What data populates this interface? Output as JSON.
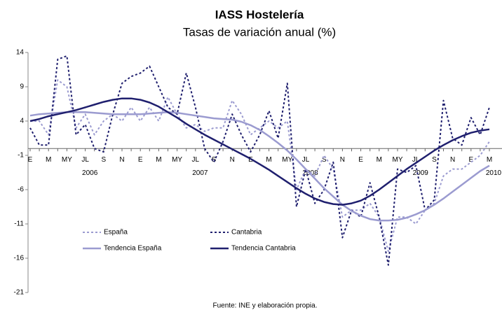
{
  "chart_data": {
    "type": "line",
    "title": "IASS Hostelería",
    "subtitle": "Tasas de variación anual (%)",
    "source": "Fuente: INE y elaboración propia.",
    "categories": [
      "E",
      null,
      "M",
      null,
      "MY",
      null,
      "JL",
      null,
      "S",
      null,
      "N",
      null,
      "E",
      null,
      "M",
      null,
      "MY",
      null,
      "JL",
      null,
      "S",
      null,
      "N",
      null,
      "E",
      null,
      "M",
      null,
      "MY",
      null,
      "JL",
      null,
      "S",
      null,
      "N",
      null,
      "E",
      null,
      "M",
      null,
      "MY",
      null,
      "JL",
      null,
      "S",
      null,
      "N",
      null,
      "E",
      null,
      "M"
    ],
    "year_labels": [
      "2006",
      "2007",
      "2008",
      "2009",
      "2010"
    ],
    "ylim": [
      -21,
      14
    ],
    "yticks": [
      -21,
      -16,
      -11,
      -6,
      -1,
      4,
      9,
      14
    ],
    "legend": "lower-left",
    "series": [
      {
        "name": "España",
        "color": "#9b9bd0",
        "dashed": true,
        "values": [
          4,
          4,
          2,
          10,
          9,
          3,
          5,
          2,
          4,
          5,
          4,
          6,
          4,
          6,
          4,
          7.5,
          5,
          3,
          3.5,
          2.5,
          3,
          3,
          7,
          5,
          2,
          3,
          4,
          3,
          4,
          -6,
          -3,
          -4,
          -1,
          -3,
          -10,
          -9,
          -9,
          -8,
          -10,
          -15,
          -10,
          -10,
          -11,
          -9,
          -8,
          -4,
          -3,
          -3,
          -2,
          -1,
          1
        ]
      },
      {
        "name": "Cantabria",
        "color": "#1f1f6e",
        "dashed": true,
        "values": [
          3,
          0.5,
          0.5,
          13,
          13.5,
          2,
          3.5,
          0,
          -0.5,
          5,
          9.5,
          10.5,
          11,
          12,
          9,
          6,
          5,
          11,
          6,
          0,
          -2,
          1,
          5,
          2,
          -0.5,
          2,
          5.5,
          1.5,
          9.5,
          -8.5,
          -3,
          -8,
          -6,
          -2,
          -13,
          -9,
          -10,
          -5,
          -10,
          -17,
          -3,
          -3.5,
          -2.5,
          -9,
          -7.5,
          7,
          1.5,
          0.5,
          4.5,
          2,
          6
        ]
      },
      {
        "name": "Tendencia España",
        "color": "#9b9bd0",
        "dashed": false,
        "values": [
          4.8,
          5,
          5.1,
          5.2,
          5.3,
          5.3,
          5.3,
          5.2,
          5.1,
          5,
          5,
          5,
          5,
          5.1,
          5.2,
          5.3,
          5.2,
          5,
          4.8,
          4.6,
          4.4,
          4.3,
          4.2,
          3.9,
          3.4,
          2.7,
          1.8,
          0.8,
          -0.3,
          -1.6,
          -3,
          -4.4,
          -5.8,
          -7,
          -8.2,
          -9.1,
          -9.8,
          -10.3,
          -10.5,
          -10.5,
          -10.4,
          -10.1,
          -9.6,
          -9,
          -8.2,
          -7.3,
          -6.3,
          -5.3,
          -4.3,
          -3.3,
          -2.5
        ]
      },
      {
        "name": "Tendencia Cantabria",
        "color": "#1f1f6e",
        "dashed": false,
        "values": [
          4,
          4.3,
          4.7,
          5,
          5.3,
          5.6,
          6,
          6.4,
          6.8,
          7.1,
          7.3,
          7.3,
          7.1,
          6.7,
          6.1,
          5.3,
          4.5,
          3.6,
          2.8,
          2,
          1.3,
          0.6,
          -0.1,
          -0.8,
          -1.5,
          -2.3,
          -3.1,
          -4,
          -4.9,
          -5.8,
          -6.6,
          -7.3,
          -7.8,
          -8.1,
          -8.2,
          -8,
          -7.6,
          -6.9,
          -6,
          -5,
          -4,
          -3,
          -2.1,
          -1.2,
          -0.3,
          0.5,
          1.2,
          1.8,
          2.3,
          2.6,
          2.8
        ]
      }
    ]
  }
}
